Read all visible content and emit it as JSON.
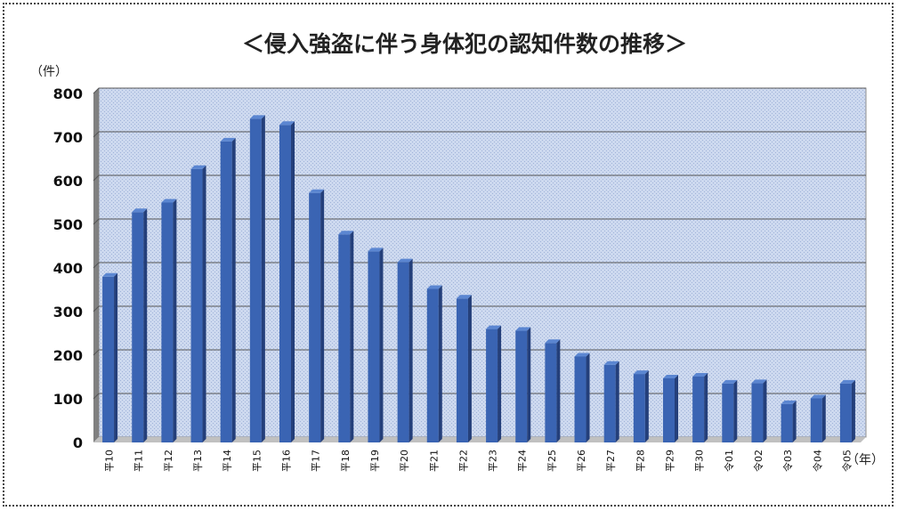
{
  "chart_data": {
    "type": "bar",
    "title": "＜侵入強盗に伴う身体犯の認知件数の推移＞",
    "ylabel": "（件）",
    "xlabel": "（年）",
    "ylim": [
      0,
      800
    ],
    "yticks": [
      0,
      100,
      200,
      300,
      400,
      500,
      600,
      700,
      800
    ],
    "grid": true,
    "categories": [
      "平10",
      "平11",
      "平12",
      "平13",
      "平14",
      "平15",
      "平16",
      "平17",
      "平18",
      "平19",
      "平20",
      "平21",
      "平22",
      "平23",
      "平24",
      "平25",
      "平26",
      "平27",
      "平28",
      "平29",
      "平30",
      "令01",
      "令02",
      "令03",
      "令04",
      "令05"
    ],
    "values": [
      380,
      528,
      550,
      627,
      690,
      742,
      728,
      572,
      477,
      438,
      413,
      352,
      330,
      260,
      256,
      228,
      197,
      178,
      157,
      147,
      151,
      135,
      136,
      88,
      101,
      135
    ],
    "colors": {
      "bar": "#3a64b3",
      "bar_dark": "#243f7a",
      "bar_light": "#5b86d1",
      "plot_bg": "#c9d6ee",
      "floor": "#c0c0c0",
      "wall": "#808080"
    }
  }
}
